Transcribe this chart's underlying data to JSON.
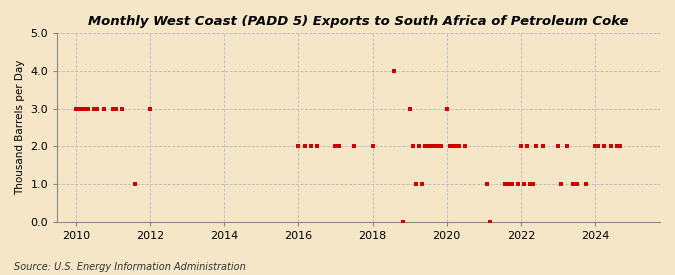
{
  "title": "Monthly West Coast (PADD 5) Exports to South Africa of Petroleum Coke",
  "ylabel": "Thousand Barrels per Day",
  "source": "Source: U.S. Energy Information Administration",
  "background_color": "#f5e6c8",
  "plot_background_color": "#f5e6c8",
  "xlim": [
    2009.5,
    2025.75
  ],
  "ylim": [
    0.0,
    5.0
  ],
  "yticks": [
    0.0,
    1.0,
    2.0,
    3.0,
    4.0,
    5.0
  ],
  "xticks": [
    2010,
    2012,
    2014,
    2016,
    2018,
    2020,
    2022,
    2024
  ],
  "data_points": [
    [
      2010.0,
      3
    ],
    [
      2010.083,
      3
    ],
    [
      2010.167,
      3
    ],
    [
      2010.25,
      3
    ],
    [
      2010.333,
      3
    ],
    [
      2010.5,
      3
    ],
    [
      2010.583,
      3
    ],
    [
      2010.75,
      3
    ],
    [
      2011.0,
      3
    ],
    [
      2011.083,
      3
    ],
    [
      2011.25,
      3
    ],
    [
      2011.583,
      1
    ],
    [
      2012.0,
      3
    ],
    [
      2016.0,
      2
    ],
    [
      2016.167,
      2
    ],
    [
      2016.333,
      2
    ],
    [
      2016.5,
      2
    ],
    [
      2017.0,
      2
    ],
    [
      2017.083,
      2
    ],
    [
      2017.5,
      2
    ],
    [
      2018.0,
      2
    ],
    [
      2018.583,
      4
    ],
    [
      2018.833,
      0.0
    ],
    [
      2019.0,
      3
    ],
    [
      2019.083,
      2
    ],
    [
      2019.167,
      1
    ],
    [
      2019.25,
      2
    ],
    [
      2019.333,
      1
    ],
    [
      2019.417,
      2
    ],
    [
      2019.5,
      2
    ],
    [
      2019.583,
      2
    ],
    [
      2019.667,
      2
    ],
    [
      2019.75,
      2
    ],
    [
      2019.833,
      2
    ],
    [
      2020.0,
      3
    ],
    [
      2020.083,
      2
    ],
    [
      2020.167,
      2
    ],
    [
      2020.25,
      2
    ],
    [
      2020.333,
      2
    ],
    [
      2020.5,
      2
    ],
    [
      2021.083,
      1
    ],
    [
      2021.167,
      0.0
    ],
    [
      2021.583,
      1
    ],
    [
      2021.667,
      1
    ],
    [
      2021.75,
      1
    ],
    [
      2021.917,
      1
    ],
    [
      2022.0,
      2
    ],
    [
      2022.083,
      1
    ],
    [
      2022.167,
      2
    ],
    [
      2022.25,
      1
    ],
    [
      2022.333,
      1
    ],
    [
      2022.417,
      2
    ],
    [
      2022.583,
      2
    ],
    [
      2023.0,
      2
    ],
    [
      2023.083,
      1
    ],
    [
      2023.25,
      2
    ],
    [
      2023.417,
      1
    ],
    [
      2023.5,
      1
    ],
    [
      2023.75,
      1
    ],
    [
      2024.0,
      2
    ],
    [
      2024.083,
      2
    ],
    [
      2024.25,
      2
    ],
    [
      2024.417,
      2
    ],
    [
      2024.583,
      2
    ],
    [
      2024.667,
      2
    ]
  ],
  "marker_color": "#cc0000",
  "marker_size": 3.5,
  "grid_color": "#bbbbbb",
  "vgrid_color": "#bbbbbb"
}
